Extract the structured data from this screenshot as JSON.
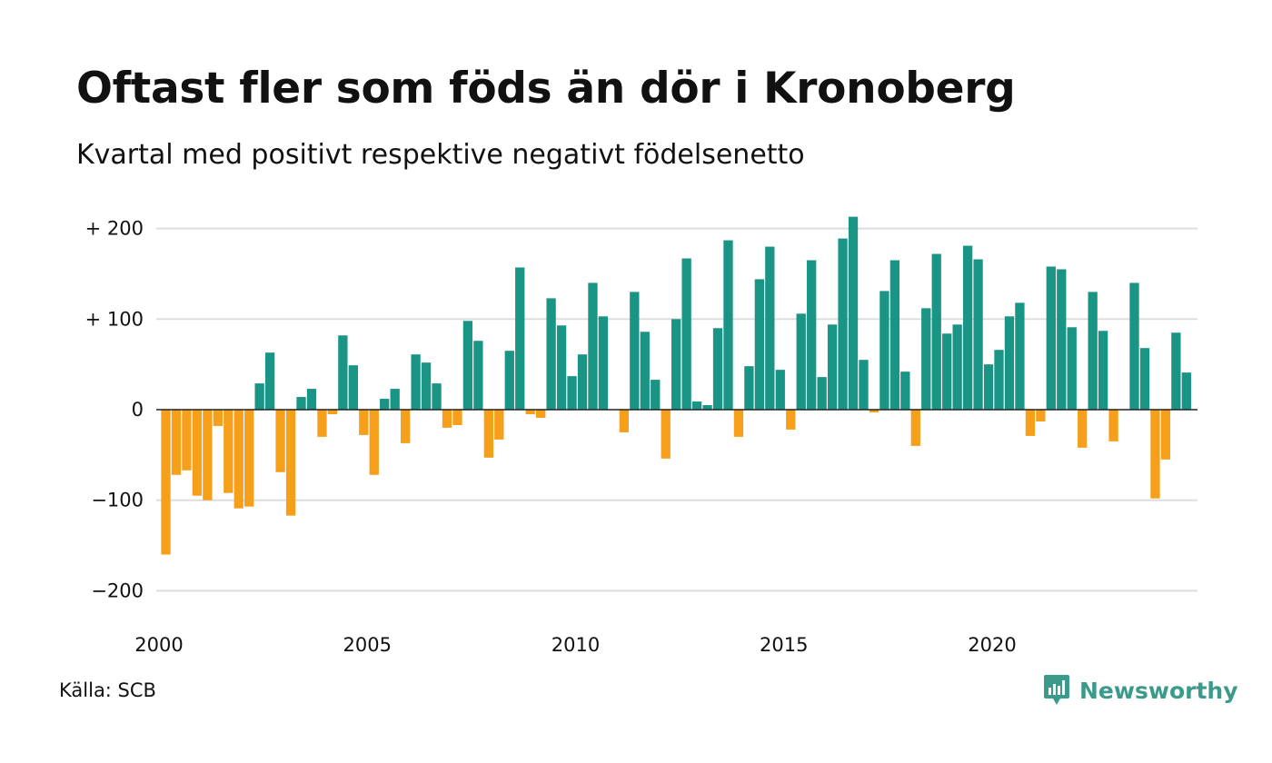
{
  "title": "Oftast fler som föds än dör i Kronoberg",
  "subtitle": "Kvartal med positivt respektive negativt födelsenetto",
  "source": "Källa: SCB",
  "brand": "Newsworthy",
  "colors": {
    "positive": "#1a9485",
    "negative": "#f59f1b",
    "grid": "#dddddd",
    "brand": "#3c9a8b"
  },
  "icons": {
    "brand_logo": "newsworthy-bar-chart-icon"
  },
  "chart_data": {
    "type": "bar",
    "xlabel": "",
    "ylabel": "",
    "ylim": [
      -225,
      225
    ],
    "yticks": [
      {
        "value": 200,
        "label": "+ 200"
      },
      {
        "value": 100,
        "label": "+ 100"
      },
      {
        "value": 0,
        "label": "0"
      },
      {
        "value": -100,
        "label": "−100"
      },
      {
        "value": -200,
        "label": "−200"
      }
    ],
    "xticks": [
      {
        "value": 2000,
        "label": "2000"
      },
      {
        "value": 2005,
        "label": "2005"
      },
      {
        "value": 2010,
        "label": "2010"
      },
      {
        "value": 2015,
        "label": "2015"
      },
      {
        "value": 2020,
        "label": "2020"
      }
    ],
    "grid": true,
    "legend": "none",
    "start": "2000 Q1",
    "values": [
      -160,
      -72,
      -67,
      -95,
      -100,
      -18,
      -92,
      -109,
      -107,
      29,
      63,
      -69,
      -117,
      14,
      23,
      -30,
      -5,
      82,
      49,
      -28,
      -72,
      12,
      23,
      -37,
      61,
      52,
      29,
      -20,
      -17,
      98,
      76,
      -53,
      -33,
      65,
      157,
      -5,
      -9,
      123,
      93,
      37,
      61,
      140,
      103,
      0,
      -25,
      130,
      86,
      33,
      -54,
      100,
      167,
      9,
      5,
      90,
      187,
      -30,
      48,
      144,
      180,
      44,
      -22,
      106,
      165,
      36,
      94,
      189,
      213,
      55,
      -3,
      131,
      165,
      42,
      -40,
      112,
      172,
      84,
      94,
      181,
      166,
      50,
      66,
      103,
      118,
      -29,
      -13,
      158,
      155,
      91,
      -42,
      130,
      87,
      -35,
      0,
      140,
      68,
      -98,
      -55,
      85,
      41
    ]
  }
}
